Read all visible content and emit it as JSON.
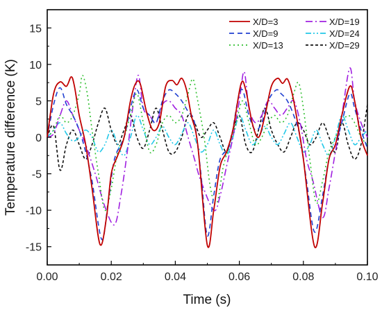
{
  "chart_data": {
    "type": "line",
    "title": "",
    "xlabel": "Time (s)",
    "ylabel": "Temperature difference (K)",
    "xlim": [
      0,
      0.1
    ],
    "ylim": [
      -17.5,
      17.5
    ],
    "x_ticks": [
      0,
      0.02,
      0.04,
      0.06,
      0.08,
      0.1
    ],
    "x_tick_labels": [
      "0.00",
      "0.02",
      "0.04",
      "0.06",
      "0.08",
      "0.10"
    ],
    "y_ticks": [
      -15,
      -10,
      -5,
      0,
      5,
      10,
      15
    ],
    "y_tick_labels": [
      "-15",
      "-10",
      "-5",
      "0",
      "5",
      "10",
      "15"
    ],
    "grid": false,
    "legend_position": "top-right",
    "series": [
      {
        "name": "X/D=3",
        "color": "#c00000",
        "dash": "solid",
        "points": [
          [
            0,
            0
          ],
          [
            0.002,
            6
          ],
          [
            0.004,
            7.6
          ],
          [
            0.006,
            7
          ],
          [
            0.0075,
            8.3
          ],
          [
            0.0085,
            7
          ],
          [
            0.01,
            3
          ],
          [
            0.012,
            -1
          ],
          [
            0.014,
            -7
          ],
          [
            0.0165,
            -14.7
          ],
          [
            0.0185,
            -11
          ],
          [
            0.02,
            -5
          ],
          [
            0.022,
            -2.5
          ],
          [
            0.024,
            0
          ],
          [
            0.026,
            5
          ],
          [
            0.0275,
            7.3
          ],
          [
            0.029,
            7.4
          ],
          [
            0.031,
            3.5
          ],
          [
            0.033,
            1
          ],
          [
            0.035,
            2
          ],
          [
            0.037,
            7
          ],
          [
            0.039,
            7.8
          ],
          [
            0.0405,
            7.2
          ],
          [
            0.042,
            8.1
          ],
          [
            0.0435,
            6.5
          ],
          [
            0.045,
            3
          ],
          [
            0.047,
            -1
          ],
          [
            0.05,
            -14.8
          ],
          [
            0.052,
            -10
          ],
          [
            0.054,
            -4
          ],
          [
            0.056,
            -2
          ],
          [
            0.058,
            1
          ],
          [
            0.0605,
            7.3
          ],
          [
            0.062,
            6.5
          ],
          [
            0.064,
            2
          ],
          [
            0.066,
            0
          ],
          [
            0.068,
            3
          ],
          [
            0.07,
            7
          ],
          [
            0.072,
            8.1
          ],
          [
            0.0735,
            7.4
          ],
          [
            0.075,
            8
          ],
          [
            0.0765,
            6
          ],
          [
            0.078,
            2.5
          ],
          [
            0.08,
            -3
          ],
          [
            0.0835,
            -15
          ],
          [
            0.086,
            -9
          ],
          [
            0.088,
            -3
          ],
          [
            0.09,
            -1
          ],
          [
            0.092,
            3
          ],
          [
            0.0945,
            7
          ],
          [
            0.096,
            5
          ],
          [
            0.098,
            0
          ],
          [
            0.1,
            -2.5
          ]
        ]
      },
      {
        "name": "X/D=9",
        "color": "#1f3fd0",
        "dash": "7,5",
        "points": [
          [
            0,
            0
          ],
          [
            0.002,
            4.5
          ],
          [
            0.004,
            6.8
          ],
          [
            0.006,
            4.5
          ],
          [
            0.008,
            3
          ],
          [
            0.01,
            1
          ],
          [
            0.012,
            -2
          ],
          [
            0.014,
            -6
          ],
          [
            0.017,
            -14
          ],
          [
            0.019,
            -9
          ],
          [
            0.021,
            -3
          ],
          [
            0.024,
            0
          ],
          [
            0.026,
            4
          ],
          [
            0.028,
            6.5
          ],
          [
            0.03,
            4
          ],
          [
            0.032,
            3
          ],
          [
            0.034,
            2
          ],
          [
            0.036,
            5
          ],
          [
            0.038,
            6.5
          ],
          [
            0.04,
            6
          ],
          [
            0.042,
            5
          ],
          [
            0.044,
            3.5
          ],
          [
            0.046,
            2
          ],
          [
            0.048,
            -5
          ],
          [
            0.05,
            -13.5
          ],
          [
            0.052,
            -8
          ],
          [
            0.054,
            -3
          ],
          [
            0.057,
            -1
          ],
          [
            0.0595,
            5
          ],
          [
            0.061,
            6.5
          ],
          [
            0.063,
            3
          ],
          [
            0.065,
            1
          ],
          [
            0.067,
            2
          ],
          [
            0.069,
            5
          ],
          [
            0.0715,
            6.5
          ],
          [
            0.073,
            6
          ],
          [
            0.075,
            5
          ],
          [
            0.077,
            3
          ],
          [
            0.079,
            0
          ],
          [
            0.081,
            -6
          ],
          [
            0.0835,
            -13
          ],
          [
            0.086,
            -8
          ],
          [
            0.088,
            -3
          ],
          [
            0.09,
            -1
          ],
          [
            0.092,
            2
          ],
          [
            0.0945,
            6
          ],
          [
            0.096,
            4
          ],
          [
            0.098,
            1
          ],
          [
            0.1,
            -1.5
          ]
        ]
      },
      {
        "name": "X/D=13",
        "color": "#2fbf2f",
        "dash": "2,4",
        "points": [
          [
            0,
            0
          ],
          [
            0.002,
            1
          ],
          [
            0.004,
            3
          ],
          [
            0.006,
            2
          ],
          [
            0.008,
            3
          ],
          [
            0.01,
            6
          ],
          [
            0.011,
            8.5
          ],
          [
            0.0125,
            6
          ],
          [
            0.014,
            1
          ],
          [
            0.016,
            -5
          ],
          [
            0.018,
            -10
          ],
          [
            0.02,
            -7
          ],
          [
            0.022,
            -2
          ],
          [
            0.024,
            0
          ],
          [
            0.026,
            3
          ],
          [
            0.028,
            6
          ],
          [
            0.03,
            2
          ],
          [
            0.032,
            -2
          ],
          [
            0.034,
            -1
          ],
          [
            0.036,
            2
          ],
          [
            0.038,
            3
          ],
          [
            0.04,
            2
          ],
          [
            0.042,
            3
          ],
          [
            0.044,
            6
          ],
          [
            0.0455,
            8
          ],
          [
            0.047,
            5
          ],
          [
            0.049,
            0
          ],
          [
            0.051,
            -7
          ],
          [
            0.053,
            -9
          ],
          [
            0.055,
            -4
          ],
          [
            0.057,
            -1
          ],
          [
            0.059,
            2
          ],
          [
            0.061,
            5
          ],
          [
            0.063,
            2
          ],
          [
            0.065,
            -1
          ],
          [
            0.067,
            0
          ],
          [
            0.069,
            2
          ],
          [
            0.071,
            3
          ],
          [
            0.073,
            2
          ],
          [
            0.075,
            3
          ],
          [
            0.077,
            6
          ],
          [
            0.0785,
            7.5
          ],
          [
            0.08,
            4
          ],
          [
            0.082,
            -3
          ],
          [
            0.084,
            -9
          ],
          [
            0.086,
            -6
          ],
          [
            0.088,
            -2
          ],
          [
            0.09,
            0
          ],
          [
            0.092,
            2
          ],
          [
            0.094,
            3
          ],
          [
            0.096,
            2
          ],
          [
            0.098,
            0
          ],
          [
            0.1,
            -1
          ]
        ]
      },
      {
        "name": "X/D=19",
        "color": "#a020e0",
        "dash": "10,4,2,4",
        "points": [
          [
            0,
            0
          ],
          [
            0.002,
            0.5
          ],
          [
            0.004,
            3
          ],
          [
            0.006,
            5
          ],
          [
            0.008,
            3
          ],
          [
            0.01,
            1
          ],
          [
            0.012,
            -1
          ],
          [
            0.015,
            -5
          ],
          [
            0.018,
            -9.5
          ],
          [
            0.021,
            -12
          ],
          [
            0.023,
            -8
          ],
          [
            0.025,
            -2
          ],
          [
            0.027,
            5
          ],
          [
            0.0285,
            8.5
          ],
          [
            0.03,
            4
          ],
          [
            0.032,
            3
          ],
          [
            0.034,
            2
          ],
          [
            0.036,
            4.5
          ],
          [
            0.038,
            5
          ],
          [
            0.04,
            4
          ],
          [
            0.042,
            3
          ],
          [
            0.044,
            0
          ],
          [
            0.046,
            -3
          ],
          [
            0.048,
            -6
          ],
          [
            0.052,
            -10
          ],
          [
            0.054,
            -8
          ],
          [
            0.056,
            -4
          ],
          [
            0.058,
            0
          ],
          [
            0.06,
            5
          ],
          [
            0.0615,
            9
          ],
          [
            0.063,
            4
          ],
          [
            0.065,
            2
          ],
          [
            0.067,
            3
          ],
          [
            0.069,
            5
          ],
          [
            0.071,
            4
          ],
          [
            0.073,
            3
          ],
          [
            0.075,
            4
          ],
          [
            0.077,
            5
          ],
          [
            0.079,
            2
          ],
          [
            0.081,
            -3
          ],
          [
            0.083,
            -6
          ],
          [
            0.086,
            -11
          ],
          [
            0.088,
            -7
          ],
          [
            0.09,
            -2
          ],
          [
            0.092,
            3
          ],
          [
            0.0945,
            9.5
          ],
          [
            0.096,
            5
          ],
          [
            0.098,
            2
          ],
          [
            0.1,
            0
          ]
        ]
      },
      {
        "name": "X/D=24",
        "color": "#22c8e8",
        "dash": "8,3,2,3,2,3",
        "points": [
          [
            0,
            0
          ],
          [
            0.002,
            1
          ],
          [
            0.004,
            2
          ],
          [
            0.006,
            0.5
          ],
          [
            0.008,
            -0.5
          ],
          [
            0.01,
            0
          ],
          [
            0.012,
            1
          ],
          [
            0.014,
            0
          ],
          [
            0.016,
            -2
          ],
          [
            0.018,
            -1
          ],
          [
            0.02,
            1
          ],
          [
            0.022,
            -1
          ],
          [
            0.024,
            -2.5
          ],
          [
            0.026,
            0
          ],
          [
            0.028,
            3
          ],
          [
            0.03,
            1
          ],
          [
            0.032,
            -1
          ],
          [
            0.034,
            0
          ],
          [
            0.036,
            1.5
          ],
          [
            0.038,
            0
          ],
          [
            0.04,
            -1
          ],
          [
            0.042,
            0.5
          ],
          [
            0.044,
            2
          ],
          [
            0.046,
            0
          ],
          [
            0.048,
            -2
          ],
          [
            0.05,
            -1
          ],
          [
            0.052,
            1
          ],
          [
            0.054,
            -1
          ],
          [
            0.056,
            -2.5
          ],
          [
            0.058,
            0
          ],
          [
            0.06,
            3
          ],
          [
            0.062,
            1
          ],
          [
            0.064,
            -1
          ],
          [
            0.066,
            0
          ],
          [
            0.068,
            1.5
          ],
          [
            0.07,
            0
          ],
          [
            0.072,
            -1
          ],
          [
            0.074,
            0.5
          ],
          [
            0.076,
            2
          ],
          [
            0.078,
            0
          ],
          [
            0.08,
            -2
          ],
          [
            0.082,
            -1
          ],
          [
            0.084,
            1
          ],
          [
            0.086,
            -1
          ],
          [
            0.088,
            -2.5
          ],
          [
            0.09,
            0
          ],
          [
            0.092,
            3
          ],
          [
            0.094,
            1
          ],
          [
            0.096,
            -1
          ],
          [
            0.098,
            0
          ],
          [
            0.1,
            1
          ]
        ]
      },
      {
        "name": "X/D=29",
        "color": "#111111",
        "dash": "4,3",
        "points": [
          [
            0,
            0
          ],
          [
            0.002,
            1.5
          ],
          [
            0.004,
            -4.5
          ],
          [
            0.006,
            -1
          ],
          [
            0.008,
            1
          ],
          [
            0.01,
            -1
          ],
          [
            0.012,
            -3
          ],
          [
            0.014,
            -1
          ],
          [
            0.016,
            2
          ],
          [
            0.018,
            4
          ],
          [
            0.02,
            1
          ],
          [
            0.022,
            -1
          ],
          [
            0.024,
            1
          ],
          [
            0.026,
            3
          ],
          [
            0.028,
            0
          ],
          [
            0.03,
            -1.5
          ],
          [
            0.032,
            1
          ],
          [
            0.034,
            4
          ],
          [
            0.036,
            1
          ],
          [
            0.038,
            -2
          ],
          [
            0.04,
            -2
          ],
          [
            0.042,
            0
          ],
          [
            0.044,
            3
          ],
          [
            0.046,
            2
          ],
          [
            0.048,
            0
          ],
          [
            0.05,
            1
          ],
          [
            0.052,
            2
          ],
          [
            0.054,
            0
          ],
          [
            0.056,
            -2
          ],
          [
            0.058,
            1
          ],
          [
            0.06,
            3
          ],
          [
            0.062,
            -1
          ],
          [
            0.064,
            -2
          ],
          [
            0.066,
            1
          ],
          [
            0.068,
            4
          ],
          [
            0.07,
            1
          ],
          [
            0.072,
            -1
          ],
          [
            0.074,
            -2
          ],
          [
            0.076,
            0
          ],
          [
            0.078,
            2
          ],
          [
            0.08,
            1
          ],
          [
            0.082,
            -1
          ],
          [
            0.084,
            0
          ],
          [
            0.086,
            2
          ],
          [
            0.088,
            0
          ],
          [
            0.09,
            -2
          ],
          [
            0.092,
            2
          ],
          [
            0.094,
            -1
          ],
          [
            0.096,
            -3
          ],
          [
            0.098,
            -1
          ],
          [
            0.1,
            4.5
          ]
        ]
      }
    ]
  }
}
